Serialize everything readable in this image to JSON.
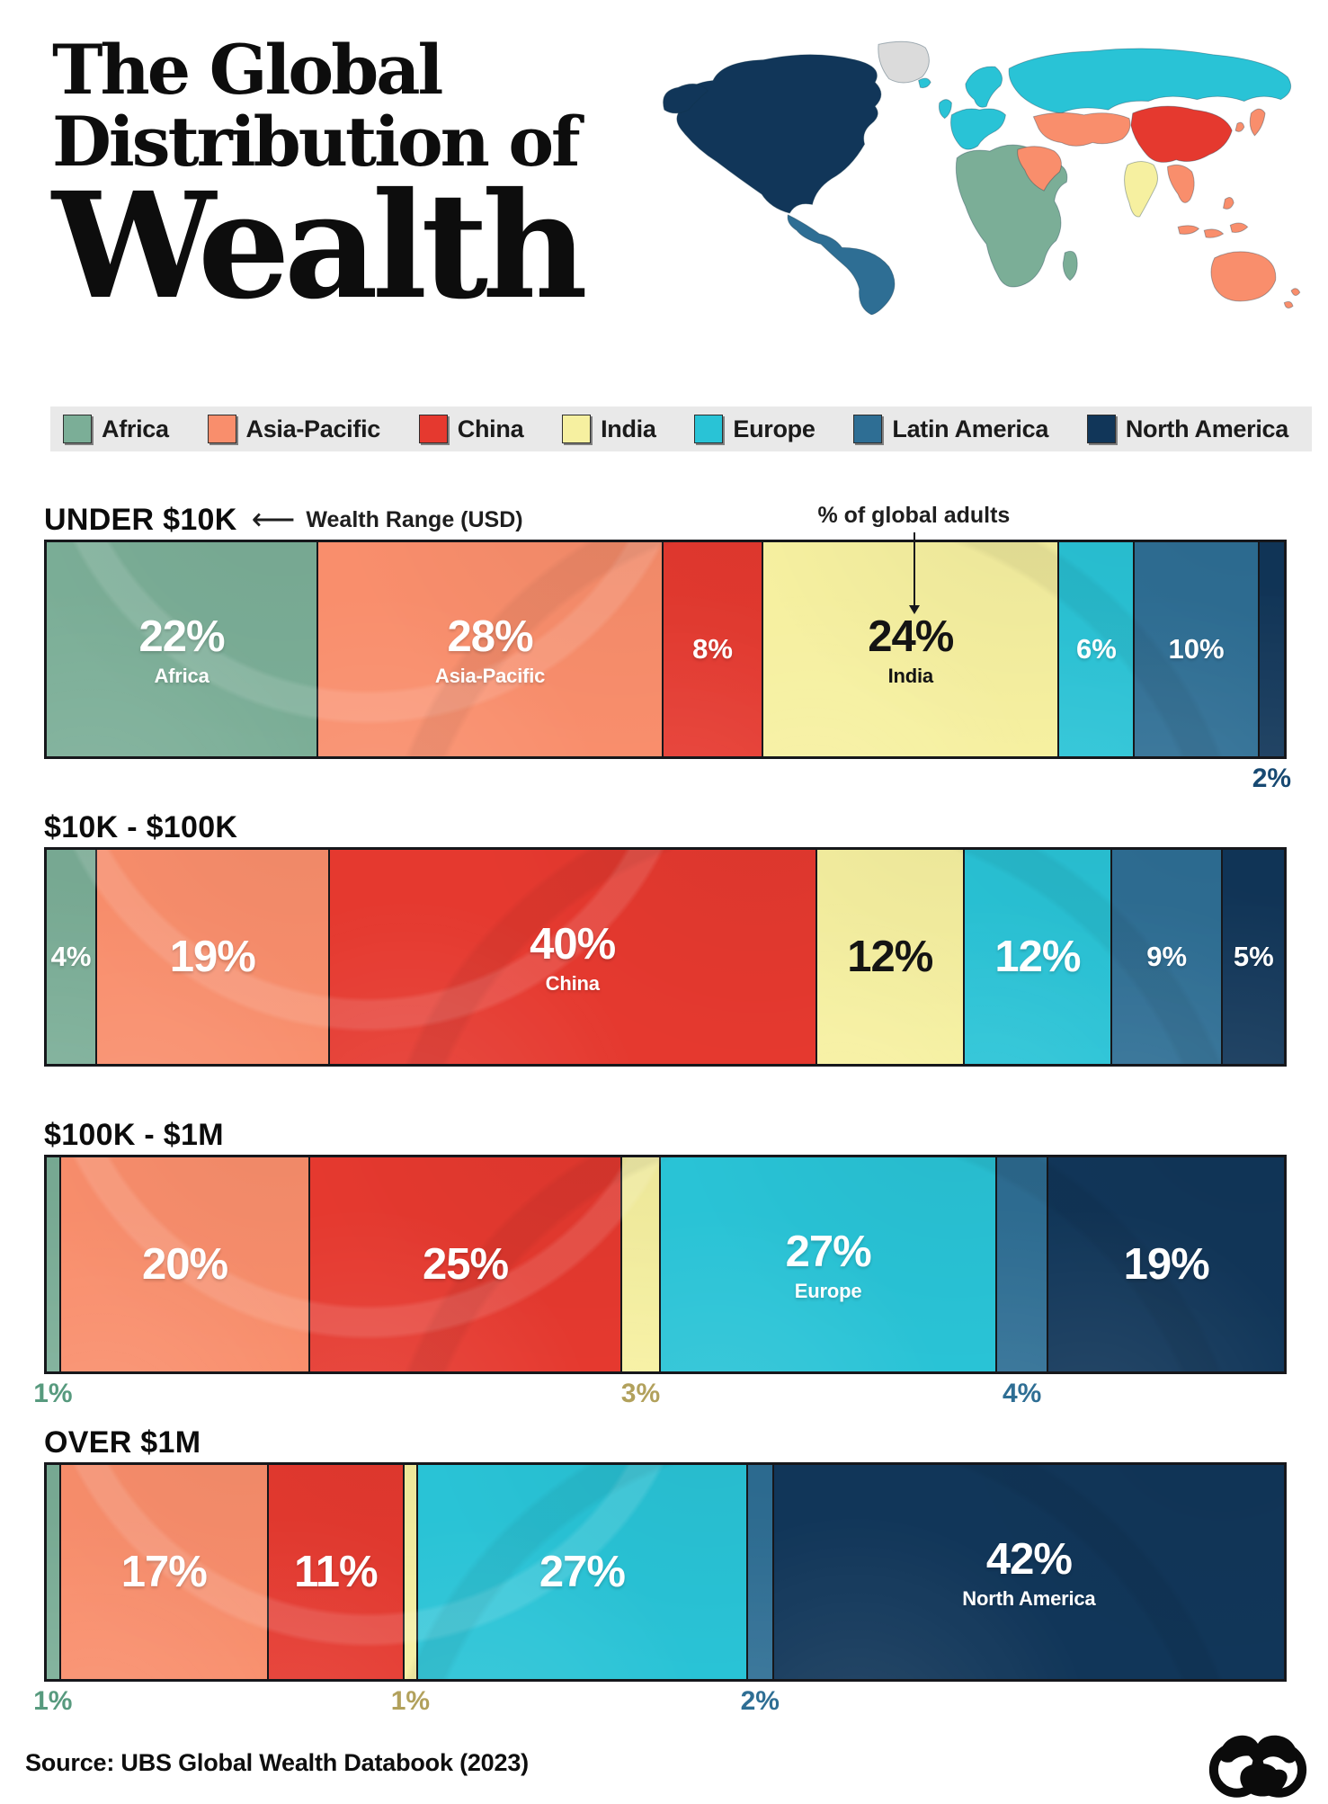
{
  "header": {
    "title_line1": "The Global",
    "title_line2": "Distribution of",
    "title_line3": "Wealth"
  },
  "legend": {
    "items": [
      {
        "label": "Africa",
        "color": "#7BAE97",
        "below_color": "#579A7E"
      },
      {
        "label": "Asia-Pacific",
        "color": "#F98E6C",
        "below_color": "#E07A52"
      },
      {
        "label": "China",
        "color": "#E5392F",
        "below_color": "#C32A22"
      },
      {
        "label": "India",
        "color": "#F6F0A0",
        "below_color": "#B2A15C"
      },
      {
        "label": "Europe",
        "color": "#29C3D6",
        "below_color": "#1FA0B0"
      },
      {
        "label": "Latin America",
        "color": "#2E6E94",
        "below_color": "#2E6E94"
      },
      {
        "label": "North America",
        "color": "#113659",
        "below_color": "#174972"
      }
    ]
  },
  "annotations": {
    "wealth_range_note": "Wealth Range (USD)",
    "adults_note": "% of global adults"
  },
  "map": {
    "greenland_color": "#DBDBDB",
    "ocean_color": "#FFFFFF"
  },
  "chart_data": {
    "type": "bar",
    "subtype": "horizontal-stacked",
    "title": "The Global Distribution of Wealth",
    "unit": "% of global adults",
    "categories": [
      "Africa",
      "Asia-Pacific",
      "China",
      "India",
      "Europe",
      "Latin America",
      "North America"
    ],
    "bars": [
      {
        "label": "UNDER $10K",
        "values": [
          22,
          28,
          8,
          24,
          6,
          10,
          2
        ],
        "segments": [
          {
            "region": 0,
            "value": 22,
            "display": "22%",
            "pos": "inside",
            "size": "lg",
            "show_region": true
          },
          {
            "region": 1,
            "value": 28,
            "display": "28%",
            "pos": "inside",
            "size": "lg",
            "show_region": true
          },
          {
            "region": 2,
            "value": 8,
            "display": "8%",
            "pos": "inside",
            "size": "md"
          },
          {
            "region": 3,
            "value": 24,
            "display": "24%",
            "pos": "inside",
            "size": "lg",
            "show_region": true,
            "dark": true
          },
          {
            "region": 4,
            "value": 6,
            "display": "6%",
            "pos": "inside",
            "size": "md"
          },
          {
            "region": 5,
            "value": 10,
            "display": "10%",
            "pos": "inside",
            "size": "md"
          },
          {
            "region": 6,
            "value": 2,
            "display": "2%",
            "pos": "below"
          }
        ]
      },
      {
        "label": "$10K - $100K",
        "values": [
          4,
          19,
          40,
          12,
          12,
          9,
          5
        ],
        "segments": [
          {
            "region": 0,
            "value": 4,
            "display": "4%",
            "pos": "inside",
            "size": "md"
          },
          {
            "region": 1,
            "value": 19,
            "display": "19%",
            "pos": "inside",
            "size": "lg"
          },
          {
            "region": 2,
            "value": 40,
            "display": "40%",
            "pos": "inside",
            "size": "lg",
            "show_region": true
          },
          {
            "region": 3,
            "value": 12,
            "display": "12%",
            "pos": "inside",
            "size": "lg",
            "dark": true
          },
          {
            "region": 4,
            "value": 12,
            "display": "12%",
            "pos": "inside",
            "size": "lg"
          },
          {
            "region": 5,
            "value": 9,
            "display": "9%",
            "pos": "inside",
            "size": "md"
          },
          {
            "region": 6,
            "value": 5,
            "display": "5%",
            "pos": "inside",
            "size": "md"
          }
        ]
      },
      {
        "label": "$100K - $1M",
        "values": [
          1,
          20,
          25,
          3,
          27,
          4,
          19
        ],
        "segments": [
          {
            "region": 0,
            "value": 1,
            "display": "1%",
            "pos": "below"
          },
          {
            "region": 1,
            "value": 20,
            "display": "20%",
            "pos": "inside",
            "size": "lg"
          },
          {
            "region": 2,
            "value": 25,
            "display": "25%",
            "pos": "inside",
            "size": "lg"
          },
          {
            "region": 3,
            "value": 3,
            "display": "3%",
            "pos": "below"
          },
          {
            "region": 4,
            "value": 27,
            "display": "27%",
            "pos": "inside",
            "size": "lg",
            "show_region": true
          },
          {
            "region": 5,
            "value": 4,
            "display": "4%",
            "pos": "below"
          },
          {
            "region": 6,
            "value": 19,
            "display": "19%",
            "pos": "inside",
            "size": "lg"
          }
        ]
      },
      {
        "label": "OVER $1M",
        "values": [
          1,
          17,
          11,
          1,
          27,
          2,
          42
        ],
        "segments": [
          {
            "region": 0,
            "value": 1,
            "display": "1%",
            "pos": "below"
          },
          {
            "region": 1,
            "value": 17,
            "display": "17%",
            "pos": "inside",
            "size": "lg"
          },
          {
            "region": 2,
            "value": 11,
            "display": "11%",
            "pos": "inside",
            "size": "lg"
          },
          {
            "region": 3,
            "value": 1,
            "display": "1%",
            "pos": "below"
          },
          {
            "region": 4,
            "value": 27,
            "display": "27%",
            "pos": "inside",
            "size": "lg"
          },
          {
            "region": 5,
            "value": 2,
            "display": "2%",
            "pos": "below"
          },
          {
            "region": 6,
            "value": 42,
            "display": "42%",
            "pos": "inside",
            "size": "lg",
            "show_region": true
          }
        ]
      }
    ]
  },
  "source": {
    "text": "Source: UBS Global Wealth Databook (2023)"
  }
}
